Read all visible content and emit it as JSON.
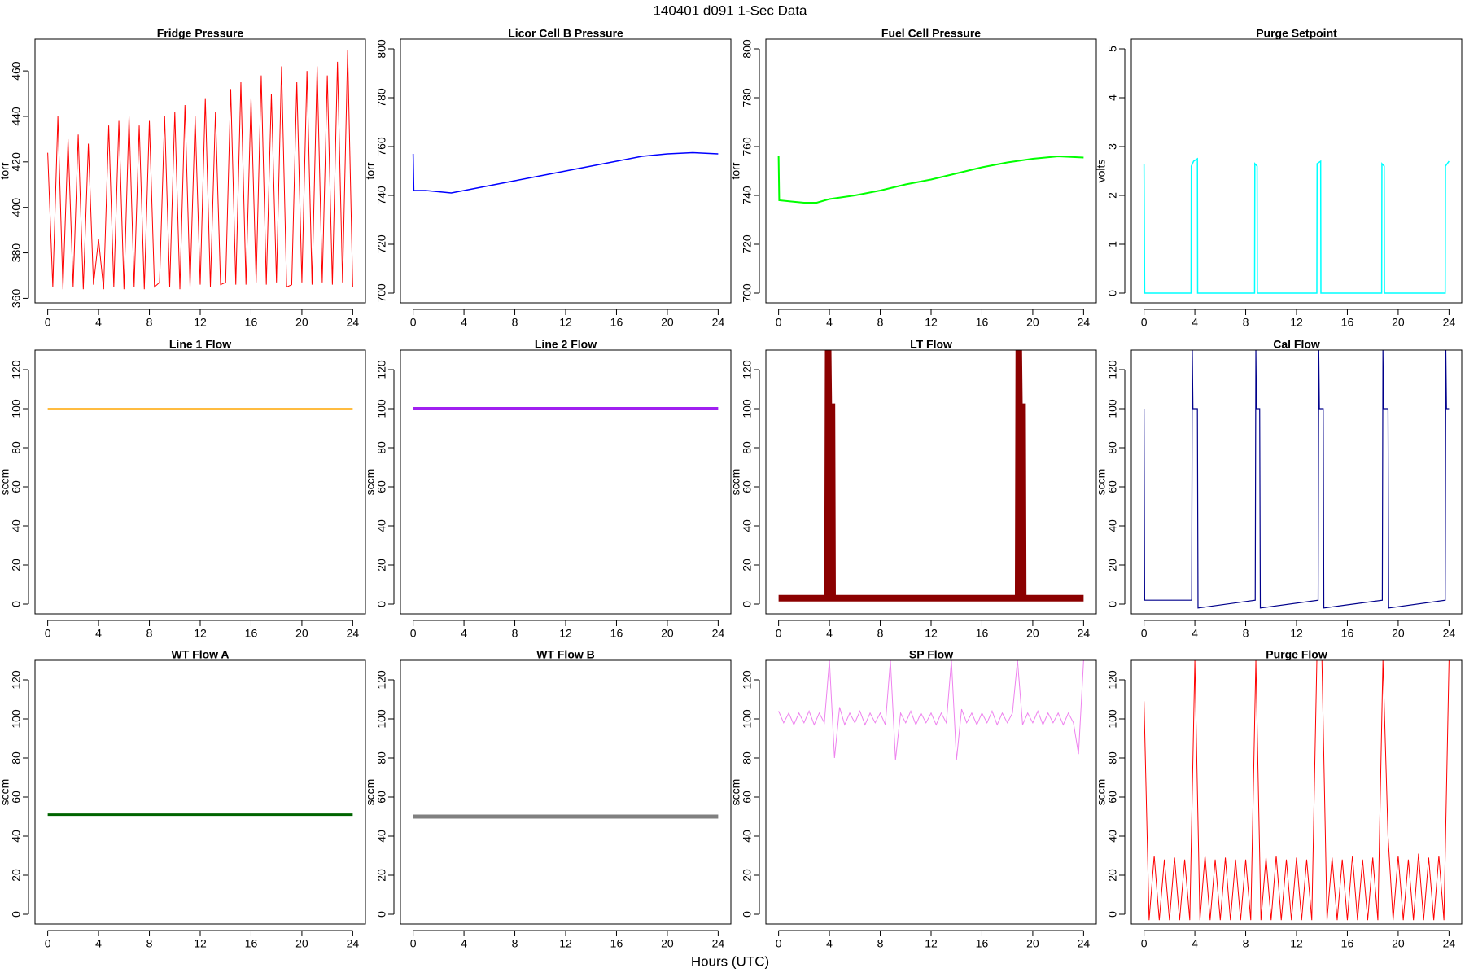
{
  "title": "140401   d091   1-Sec Data",
  "xlabel": "Hours (UTC)",
  "chart_data": [
    {
      "type": "line",
      "title": "Fridge Pressure",
      "ylabel": "torr",
      "color": "#ff0000",
      "linewidth": 1,
      "xlim": [
        -1,
        25
      ],
      "ylim": [
        358,
        474
      ],
      "xticks": [
        0,
        4,
        8,
        12,
        16,
        20,
        24
      ],
      "yticks": [
        360,
        380,
        400,
        420,
        440,
        460
      ],
      "x": [
        0,
        0.4,
        0.8,
        1.2,
        1.6,
        2,
        2.4,
        2.8,
        3.2,
        3.6,
        4,
        4.4,
        4.8,
        5.2,
        5.6,
        6,
        6.4,
        6.8,
        7.2,
        7.6,
        8,
        8.4,
        8.8,
        9.2,
        9.6,
        10,
        10.4,
        10.8,
        11.2,
        11.6,
        12,
        12.4,
        12.8,
        13.2,
        13.6,
        14,
        14.4,
        14.8,
        15.2,
        15.6,
        16,
        16.4,
        16.8,
        17.2,
        17.6,
        18,
        18.4,
        18.8,
        19.2,
        19.6,
        20,
        20.4,
        20.8,
        21.2,
        21.6,
        22,
        22.4,
        22.8,
        23.2,
        23.6,
        24
      ],
      "values": [
        424,
        365,
        440,
        364,
        430,
        365,
        432,
        364,
        428,
        366,
        386,
        364,
        436,
        365,
        438,
        364,
        440,
        365,
        436,
        364,
        438,
        365,
        367,
        440,
        365,
        442,
        364,
        445,
        365,
        440,
        366,
        448,
        365,
        442,
        366,
        367,
        452,
        366,
        455,
        366,
        448,
        367,
        458,
        366,
        450,
        367,
        462,
        365,
        366,
        455,
        367,
        460,
        366,
        462,
        367,
        458,
        366,
        464,
        367,
        469,
        365
      ]
    },
    {
      "type": "line",
      "title": "Licor Cell B Pressure",
      "ylabel": "torr",
      "color": "#0000ff",
      "linewidth": 1.5,
      "xlim": [
        -1,
        25
      ],
      "ylim": [
        696,
        804
      ],
      "xticks": [
        0,
        4,
        8,
        12,
        16,
        20,
        24
      ],
      "yticks": [
        700,
        720,
        740,
        760,
        780,
        800
      ],
      "x": [
        0,
        0.05,
        1,
        2,
        3,
        4,
        6,
        8,
        10,
        12,
        14,
        16,
        18,
        20,
        22,
        24
      ],
      "values": [
        757,
        742,
        742,
        741.5,
        741,
        742,
        744,
        746,
        748,
        750,
        752,
        754,
        756,
        757,
        757.5,
        757
      ]
    },
    {
      "type": "line",
      "title": "Fuel Cell Pressure",
      "ylabel": "torr",
      "color": "#00ff00",
      "linewidth": 2,
      "xlim": [
        -1,
        25
      ],
      "ylim": [
        696,
        804
      ],
      "xticks": [
        0,
        4,
        8,
        12,
        16,
        20,
        24
      ],
      "yticks": [
        700,
        720,
        740,
        760,
        780,
        800
      ],
      "x": [
        0,
        0.05,
        1,
        2,
        3,
        4,
        6,
        8,
        10,
        12,
        14,
        16,
        18,
        20,
        22,
        24
      ],
      "values": [
        756,
        738,
        737.5,
        737,
        737,
        738.5,
        740,
        742,
        744.5,
        746.5,
        749,
        751.5,
        753.5,
        755,
        756,
        755.5
      ]
    },
    {
      "type": "line",
      "title": "Purge Setpoint",
      "ylabel": "volts",
      "color": "#00ffff",
      "linewidth": 1.5,
      "xlim": [
        -1,
        25
      ],
      "ylim": [
        -0.2,
        5.2
      ],
      "xticks": [
        0,
        4,
        8,
        12,
        16,
        20,
        24
      ],
      "yticks": [
        0,
        1,
        2,
        3,
        4,
        5
      ],
      "x": [
        0,
        0.05,
        3.7,
        3.72,
        3.9,
        4.2,
        4.22,
        8.7,
        8.72,
        8.9,
        8.92,
        13.6,
        13.62,
        13.9,
        13.92,
        18.7,
        18.72,
        18.9,
        18.92,
        23.7,
        23.72,
        24
      ],
      "values": [
        2.65,
        0,
        0,
        2.6,
        2.7,
        2.75,
        0,
        0,
        2.65,
        2.6,
        0,
        0,
        2.65,
        2.7,
        0,
        0,
        2.65,
        2.6,
        0,
        0,
        2.6,
        2.7
      ]
    },
    {
      "type": "line",
      "title": "Line 1 Flow",
      "ylabel": "sccm",
      "color": "#ffa500",
      "linewidth": 1.5,
      "xlim": [
        -1,
        25
      ],
      "ylim": [
        -5,
        130
      ],
      "xticks": [
        0,
        4,
        8,
        12,
        16,
        20,
        24
      ],
      "yticks": [
        0,
        20,
        40,
        60,
        80,
        100,
        120
      ],
      "x": [
        0,
        24
      ],
      "values": [
        100,
        100
      ]
    },
    {
      "type": "line",
      "title": "Line 2 Flow",
      "ylabel": "sccm",
      "color": "#a020f0",
      "linewidth": 4,
      "xlim": [
        -1,
        25
      ],
      "ylim": [
        -5,
        130
      ],
      "xticks": [
        0,
        4,
        8,
        12,
        16,
        20,
        24
      ],
      "yticks": [
        0,
        20,
        40,
        60,
        80,
        100,
        120
      ],
      "x": [
        0,
        24
      ],
      "values": [
        100,
        100
      ]
    },
    {
      "type": "line",
      "title": "LT Flow",
      "ylabel": "sccm",
      "color": "#8b0000",
      "linewidth": 8,
      "xlim": [
        -1,
        25
      ],
      "ylim": [
        -5,
        130
      ],
      "xticks": [
        0,
        4,
        8,
        12,
        16,
        20,
        24
      ],
      "yticks": [
        0,
        20,
        40,
        60,
        80,
        100,
        120
      ],
      "x": [
        0,
        3.85,
        3.9,
        3.95,
        4.2,
        4.25,
        18.85,
        18.9,
        18.95,
        19.2,
        19.25,
        24
      ],
      "values": [
        3,
        3,
        130,
        101,
        101,
        3,
        3,
        130,
        101,
        101,
        3,
        3
      ]
    },
    {
      "type": "line",
      "title": "Cal Flow",
      "ylabel": "sccm",
      "color": "#00008b",
      "linewidth": 1.2,
      "xlim": [
        -1,
        25
      ],
      "ylim": [
        -5,
        130
      ],
      "xticks": [
        0,
        4,
        8,
        12,
        16,
        20,
        24
      ],
      "yticks": [
        0,
        20,
        40,
        60,
        80,
        100,
        120
      ],
      "x": [
        0,
        0.05,
        3.75,
        3.8,
        3.85,
        4.2,
        4.25,
        8.75,
        8.8,
        8.85,
        9.1,
        9.15,
        13.7,
        13.75,
        13.8,
        14.1,
        14.15,
        18.75,
        18.8,
        18.85,
        19.2,
        19.25,
        23.7,
        23.75,
        23.8,
        24
      ],
      "values": [
        100,
        2,
        2,
        130,
        100,
        100,
        -2,
        2,
        130,
        100,
        100,
        -2,
        2,
        130,
        100,
        100,
        -2,
        2,
        130,
        100,
        100,
        -2,
        2,
        130,
        100,
        100
      ]
    },
    {
      "type": "line",
      "title": "WT Flow A",
      "ylabel": "sccm",
      "color": "#006400",
      "linewidth": 3,
      "xlim": [
        -1,
        25
      ],
      "ylim": [
        -5,
        130
      ],
      "xticks": [
        0,
        4,
        8,
        12,
        16,
        20,
        24
      ],
      "yticks": [
        0,
        20,
        40,
        60,
        80,
        100,
        120
      ],
      "x": [
        0,
        24
      ],
      "values": [
        51,
        51
      ]
    },
    {
      "type": "line",
      "title": "WT Flow B",
      "ylabel": "sccm",
      "color": "#808080",
      "linewidth": 5,
      "xlim": [
        -1,
        25
      ],
      "ylim": [
        -5,
        130
      ],
      "xticks": [
        0,
        4,
        8,
        12,
        16,
        20,
        24
      ],
      "yticks": [
        0,
        20,
        40,
        60,
        80,
        100,
        120
      ],
      "x": [
        0,
        24
      ],
      "values": [
        50,
        50
      ]
    },
    {
      "type": "line",
      "title": "SP Flow",
      "ylabel": "sccm",
      "color": "#ee82ee",
      "linewidth": 1,
      "xlim": [
        -1,
        25
      ],
      "ylim": [
        -5,
        130
      ],
      "xticks": [
        0,
        4,
        8,
        12,
        16,
        20,
        24
      ],
      "yticks": [
        0,
        20,
        40,
        60,
        80,
        100,
        120
      ],
      "x": [
        0,
        0.4,
        0.8,
        1.2,
        1.6,
        2,
        2.4,
        2.8,
        3.2,
        3.6,
        4,
        4.4,
        4.8,
        5.2,
        5.6,
        6,
        6.4,
        6.8,
        7.2,
        7.6,
        8,
        8.4,
        8.8,
        9.2,
        9.6,
        10,
        10.4,
        10.8,
        11.2,
        11.6,
        12,
        12.4,
        12.8,
        13.2,
        13.6,
        14,
        14.4,
        14.8,
        15.2,
        15.6,
        16,
        16.4,
        16.8,
        17.2,
        17.6,
        18,
        18.4,
        18.8,
        19.2,
        19.6,
        20,
        20.4,
        20.8,
        21.2,
        21.6,
        22,
        22.4,
        22.8,
        23.2,
        23.6,
        24
      ],
      "values": [
        104,
        98,
        103,
        97,
        103,
        98,
        104,
        97,
        103,
        98,
        130,
        80,
        106,
        97,
        103,
        98,
        104,
        97,
        103,
        98,
        103,
        97,
        130,
        79,
        103,
        98,
        104,
        97,
        103,
        98,
        103,
        97,
        103,
        98,
        130,
        79,
        105,
        98,
        103,
        97,
        103,
        98,
        104,
        97,
        103,
        98,
        103,
        130,
        97,
        103,
        98,
        104,
        97,
        103,
        98,
        103,
        97,
        103,
        98,
        82,
        130
      ]
    },
    {
      "type": "line",
      "title": "Purge Flow",
      "ylabel": "sccm",
      "color": "#ff0000",
      "linewidth": 1,
      "xlim": [
        -1,
        25
      ],
      "ylim": [
        -5,
        130
      ],
      "xticks": [
        0,
        4,
        8,
        12,
        16,
        20,
        24
      ],
      "yticks": [
        0,
        20,
        40,
        60,
        80,
        100,
        120
      ],
      "x": [
        0,
        0.4,
        0.8,
        1.2,
        1.6,
        2,
        2.4,
        2.8,
        3.2,
        3.6,
        4,
        4.4,
        4.8,
        5.2,
        5.6,
        6,
        6.4,
        6.8,
        7.2,
        7.6,
        8,
        8.4,
        8.8,
        9.2,
        9.6,
        10,
        10.4,
        10.8,
        11.2,
        11.6,
        12,
        12.4,
        12.8,
        13.2,
        13.6,
        14,
        14.4,
        14.8,
        15.2,
        15.6,
        16,
        16.4,
        16.8,
        17.2,
        17.6,
        18,
        18.4,
        18.8,
        19.2,
        19.6,
        20,
        20.4,
        20.8,
        21.2,
        21.6,
        22,
        22.4,
        22.8,
        23.2,
        23.6,
        24
      ],
      "values": [
        109,
        -3,
        30,
        -3,
        28,
        -3,
        29,
        -3,
        28,
        -3,
        130,
        -3,
        30,
        -3,
        28,
        -3,
        29,
        -3,
        28,
        -3,
        28,
        -3,
        130,
        -3,
        29,
        -3,
        30,
        -3,
        28,
        -3,
        29,
        -3,
        28,
        -3,
        130,
        130,
        -3,
        29,
        -3,
        28,
        -3,
        30,
        -3,
        28,
        -3,
        29,
        -3,
        130,
        40,
        -3,
        30,
        -3,
        28,
        -3,
        31,
        -3,
        29,
        -3,
        30,
        -3,
        130
      ]
    }
  ]
}
